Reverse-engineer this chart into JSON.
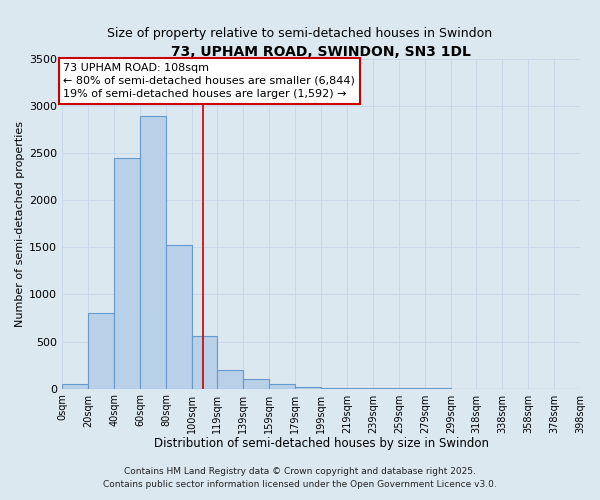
{
  "title": "73, UPHAM ROAD, SWINDON, SN3 1DL",
  "subtitle": "Size of property relative to semi-detached houses in Swindon",
  "xlabel": "Distribution of semi-detached houses by size in Swindon",
  "ylabel": "Number of semi-detached properties",
  "bar_left_edges": [
    0,
    20,
    40,
    60,
    80,
    100,
    119,
    139,
    159,
    179,
    199,
    219,
    239,
    259,
    279,
    299,
    318,
    338,
    358,
    378
  ],
  "bar_widths": [
    20,
    20,
    20,
    20,
    20,
    19,
    20,
    20,
    20,
    20,
    20,
    20,
    20,
    20,
    20,
    19,
    20,
    20,
    20,
    20
  ],
  "bar_heights": [
    50,
    800,
    2450,
    2900,
    1530,
    560,
    200,
    100,
    50,
    20,
    10,
    5,
    5,
    3,
    2,
    1,
    1,
    0,
    0,
    0
  ],
  "bar_color": "#b8d0e8",
  "bar_edge_color": "#6699cc",
  "tick_labels": [
    "0sqm",
    "20sqm",
    "40sqm",
    "60sqm",
    "80sqm",
    "100sqm",
    "119sqm",
    "139sqm",
    "159sqm",
    "179sqm",
    "199sqm",
    "219sqm",
    "239sqm",
    "259sqm",
    "279sqm",
    "299sqm",
    "318sqm",
    "338sqm",
    "358sqm",
    "378sqm",
    "398sqm"
  ],
  "tick_positions": [
    0,
    20,
    40,
    60,
    80,
    100,
    119,
    139,
    159,
    179,
    199,
    219,
    239,
    259,
    279,
    299,
    318,
    338,
    358,
    378,
    398
  ],
  "ylim": [
    0,
    3500
  ],
  "xlim": [
    0,
    398
  ],
  "yticks": [
    0,
    500,
    1000,
    1500,
    2000,
    2500,
    3000,
    3500
  ],
  "vline_x": 108,
  "vline_color": "#cc0000",
  "annotation_line1": "73 UPHAM ROAD: 108sqm",
  "annotation_line2": "← 80% of semi-detached houses are smaller (6,844)",
  "annotation_line3": "19% of semi-detached houses are larger (1,592) →",
  "annotation_box_edgecolor": "#cc0000",
  "annotation_box_facecolor": "#ffffff",
  "grid_color": "#c8d8e8",
  "background_color": "#dce8f0",
  "footer_line1": "Contains HM Land Registry data © Crown copyright and database right 2025.",
  "footer_line2": "Contains public sector information licensed under the Open Government Licence v3.0.",
  "title_fontsize": 10,
  "subtitle_fontsize": 9,
  "xlabel_fontsize": 8.5,
  "ylabel_fontsize": 8,
  "annotation_fontsize": 8,
  "tick_fontsize": 7,
  "ytick_fontsize": 8,
  "footer_fontsize": 6.5
}
